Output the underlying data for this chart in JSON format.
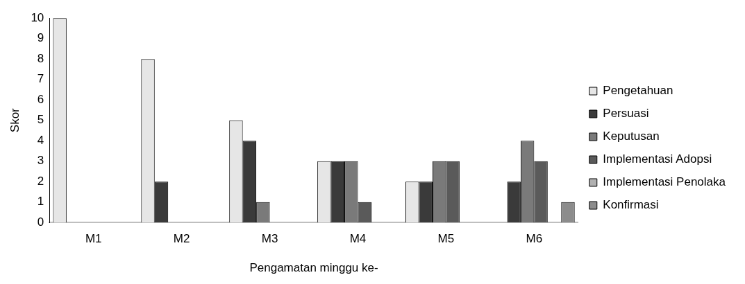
{
  "chart_data": {
    "type": "bar",
    "xlabel": "Pengamatan minggu ke-",
    "ylabel": "Skor",
    "categories": [
      "M1",
      "M2",
      "M3",
      "M4",
      "M5",
      "M6"
    ],
    "series": [
      {
        "name": "Pengetahuan",
        "color": "#e6e6e6",
        "values": [
          10,
          8,
          5,
          3,
          2,
          0
        ]
      },
      {
        "name": "Persuasi",
        "color": "#3a3a3a",
        "values": [
          0,
          2,
          4,
          3,
          2,
          2
        ]
      },
      {
        "name": "Keputusan",
        "color": "#7a7a7a",
        "values": [
          0,
          0,
          1,
          3,
          3,
          4
        ]
      },
      {
        "name": "Implementasi Adopsi",
        "color": "#5a5a5a",
        "values": [
          0,
          0,
          0,
          1,
          3,
          3
        ]
      },
      {
        "name": "Implementasi Penolaka",
        "color": "#b0b0b0",
        "values": [
          0,
          0,
          0,
          0,
          0,
          0
        ]
      },
      {
        "name": "Konfirmasi",
        "color": "#8c8c8c",
        "values": [
          0,
          0,
          0,
          0,
          0,
          1
        ]
      }
    ],
    "ylim": [
      0,
      10
    ],
    "yticks": [
      0,
      1,
      2,
      3,
      4,
      5,
      6,
      7,
      8,
      9,
      10
    ],
    "grid": false,
    "legend": "right"
  }
}
